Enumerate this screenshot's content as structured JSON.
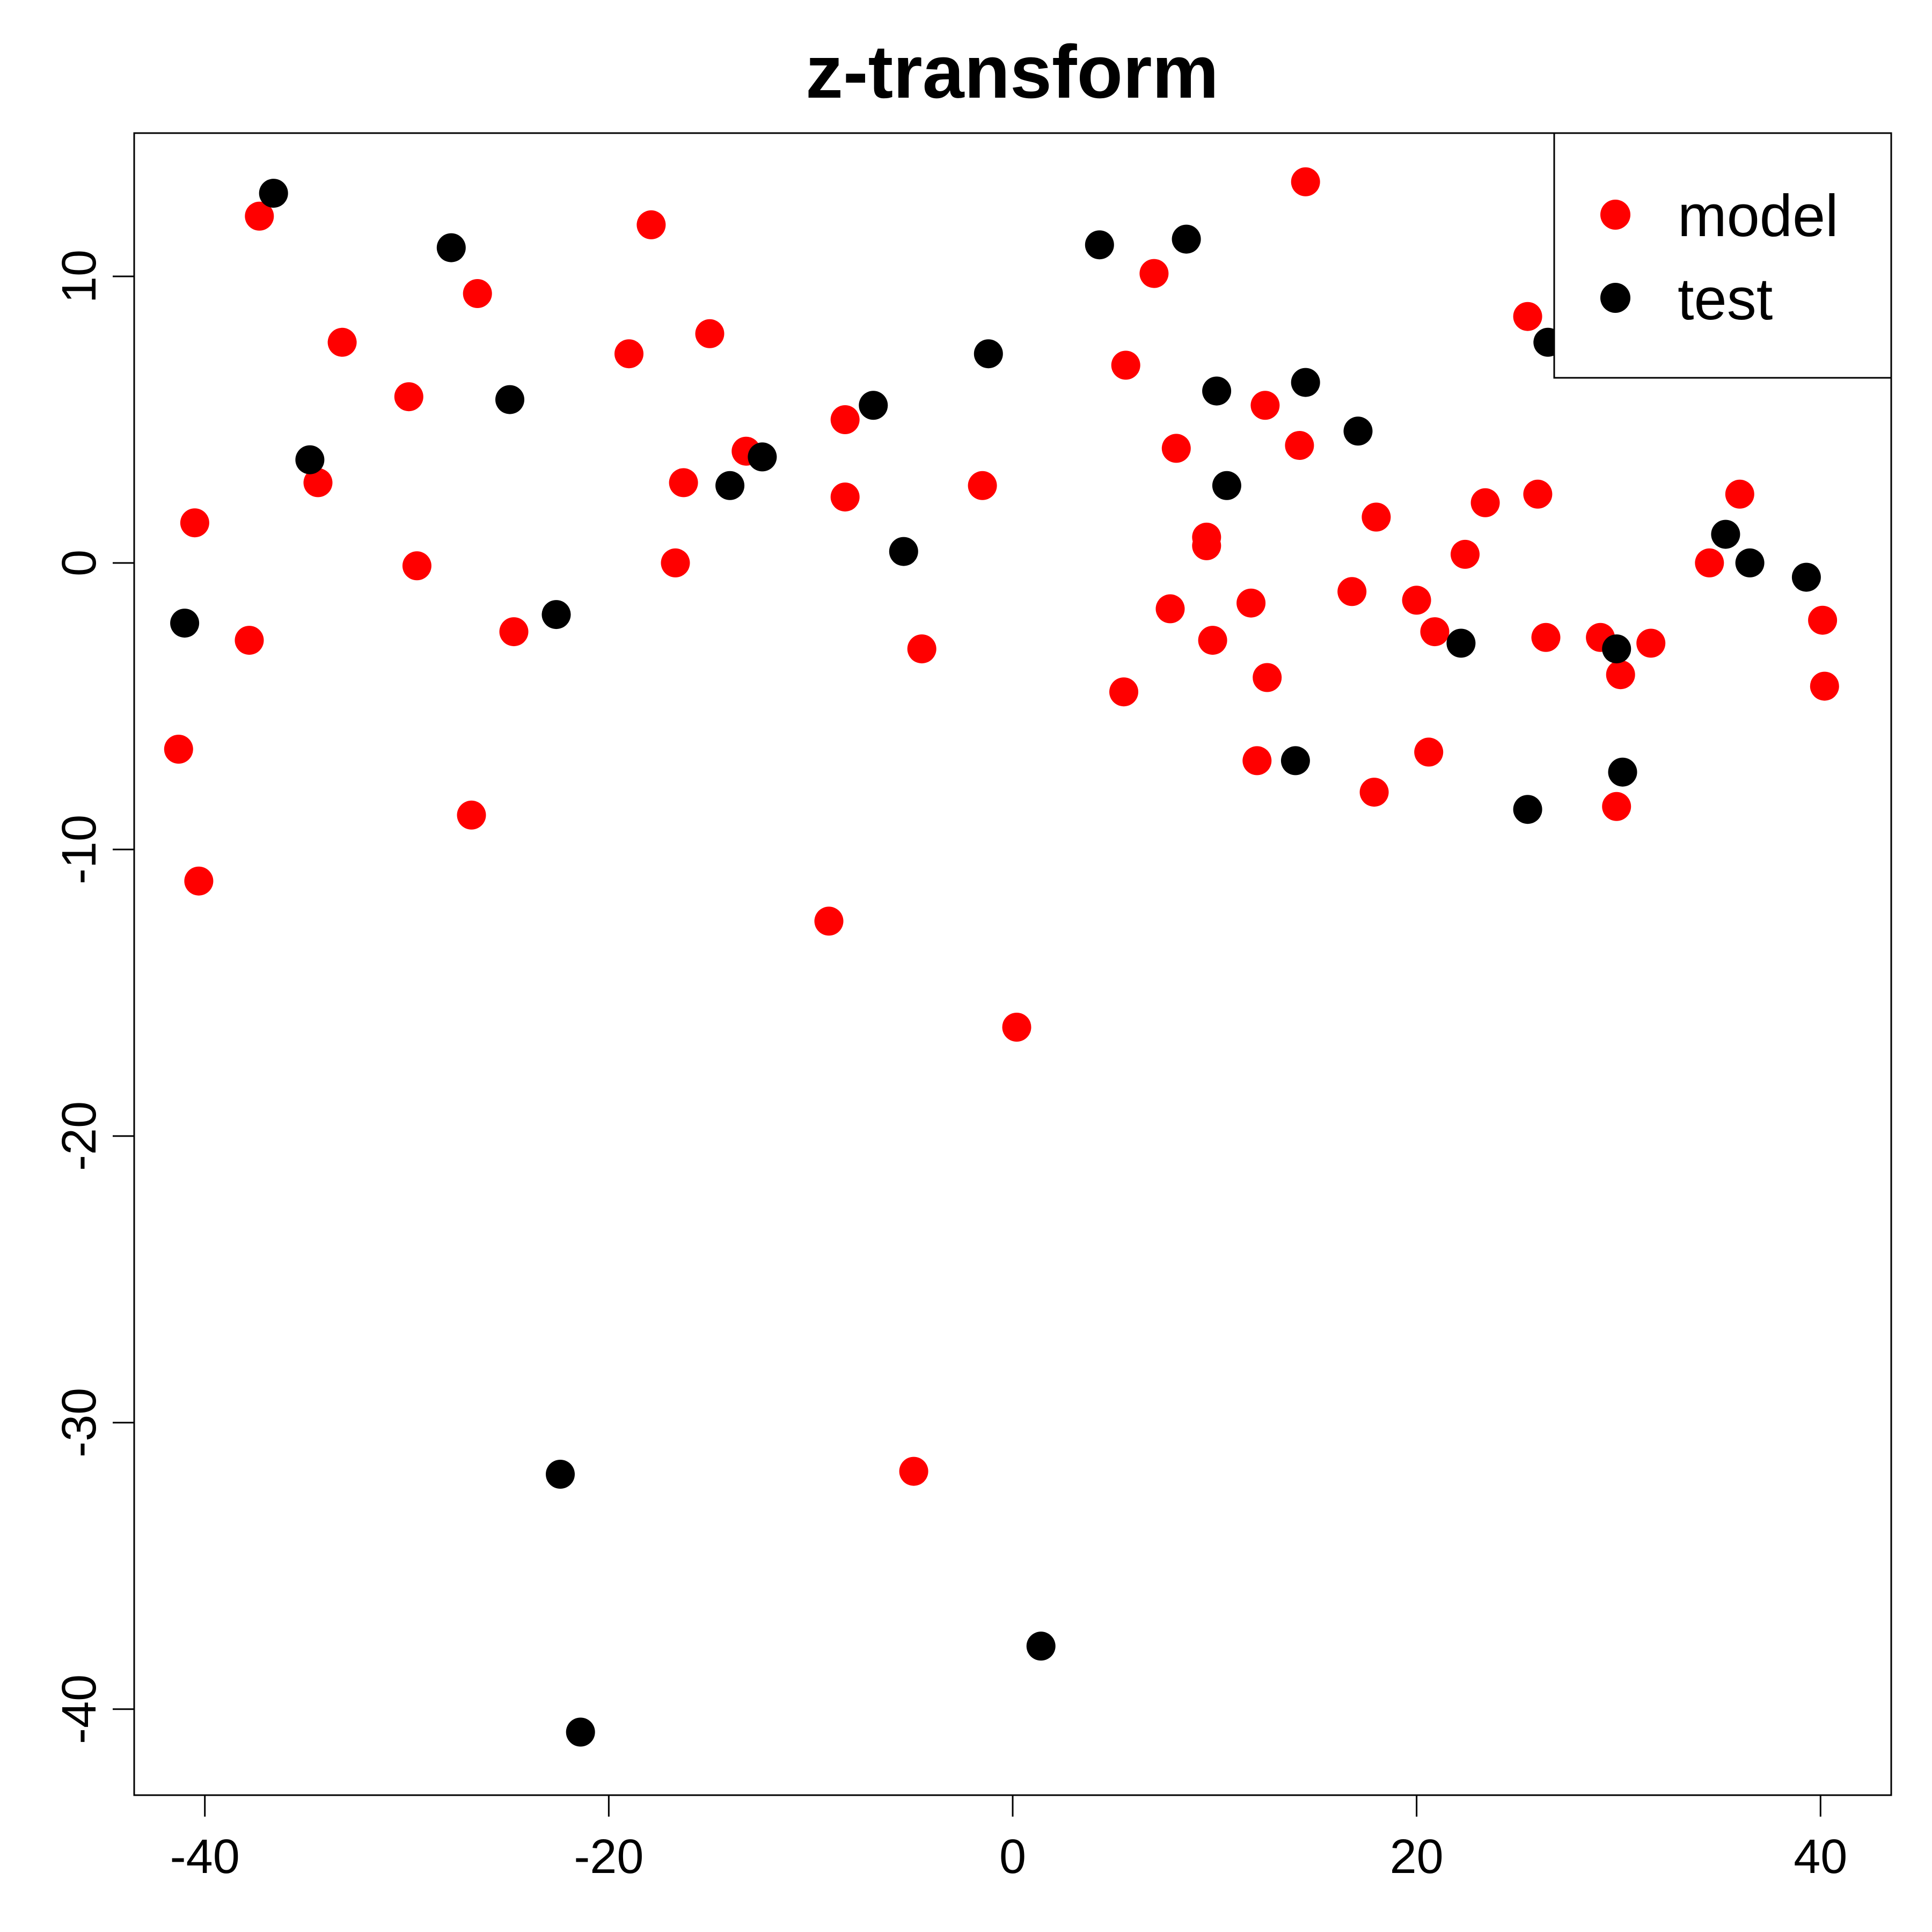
{
  "chart_data": {
    "type": "scatter",
    "title": "z-transform",
    "xlabel": "",
    "ylabel": "",
    "xlim": [
      -43.5,
      43.5
    ],
    "ylim": [
      -43,
      15
    ],
    "x_ticks": [
      -40,
      -20,
      0,
      20,
      40
    ],
    "y_ticks": [
      -40,
      -30,
      -20,
      -10,
      0,
      10
    ],
    "x_tick_labels": [
      "-40",
      "-20",
      "0",
      "20",
      "40"
    ],
    "y_tick_labels": [
      "-40",
      "-30",
      "-20",
      "-10",
      "0",
      "10"
    ],
    "grid": false,
    "legend_position": "top-right",
    "series": [
      {
        "name": "model",
        "color": "#ff0000",
        "points": [
          [
            -41.3,
            -6.5
          ],
          [
            -40.3,
            -11.1
          ],
          [
            -40.5,
            1.4
          ],
          [
            -37.8,
            -2.7
          ],
          [
            -37.3,
            12.1
          ],
          [
            -33.2,
            7.7
          ],
          [
            -34.4,
            2.8
          ],
          [
            -29.9,
            5.8
          ],
          [
            -29.5,
            -0.1
          ],
          [
            -26.5,
            9.4
          ],
          [
            -26.8,
            -8.8
          ],
          [
            -24.7,
            -2.4
          ],
          [
            -19.0,
            7.3
          ],
          [
            -17.9,
            11.8
          ],
          [
            -16.3,
            2.8
          ],
          [
            -16.7,
            0.0
          ],
          [
            -15.0,
            8.0
          ],
          [
            -13.2,
            3.9
          ],
          [
            -9.1,
            -12.5
          ],
          [
            -8.3,
            5.0
          ],
          [
            -8.3,
            2.3
          ],
          [
            -4.5,
            -3.0
          ],
          [
            -4.9,
            -31.7
          ],
          [
            -1.5,
            2.7
          ],
          [
            0.2,
            -16.2
          ],
          [
            5.6,
            6.9
          ],
          [
            5.5,
            -4.5
          ],
          [
            7.0,
            10.1
          ],
          [
            7.8,
            -1.6
          ],
          [
            8.1,
            4.0
          ],
          [
            9.6,
            0.9
          ],
          [
            9.6,
            0.6
          ],
          [
            9.9,
            -2.7
          ],
          [
            11.8,
            -1.4
          ],
          [
            12.1,
            -6.9
          ],
          [
            12.5,
            5.5
          ],
          [
            12.6,
            -4.0
          ],
          [
            14.2,
            4.1
          ],
          [
            14.5,
            13.3
          ],
          [
            16.8,
            -1.0
          ],
          [
            18.0,
            1.6
          ],
          [
            17.9,
            -8.0
          ],
          [
            20.0,
            -1.3
          ],
          [
            20.6,
            -6.6
          ],
          [
            20.9,
            -2.4
          ],
          [
            22.4,
            0.3
          ],
          [
            23.4,
            2.1
          ],
          [
            25.5,
            8.6
          ],
          [
            26.0,
            2.4
          ],
          [
            26.4,
            -2.6
          ],
          [
            29.1,
            -2.6
          ],
          [
            30.1,
            -3.9
          ],
          [
            29.9,
            -8.5
          ],
          [
            31.6,
            -2.8
          ],
          [
            34.5,
            0.0
          ],
          [
            36.0,
            2.4
          ],
          [
            40.1,
            -2.0
          ],
          [
            40.2,
            -4.3
          ]
        ]
      },
      {
        "name": "test",
        "color": "#000000",
        "points": [
          [
            -41.0,
            -2.1
          ],
          [
            -36.6,
            12.9
          ],
          [
            -34.8,
            3.6
          ],
          [
            -27.8,
            11.0
          ],
          [
            -24.9,
            5.7
          ],
          [
            -22.6,
            -1.8
          ],
          [
            -22.4,
            -31.8
          ],
          [
            -21.4,
            -40.8
          ],
          [
            -14.0,
            2.7
          ],
          [
            -12.4,
            3.7
          ],
          [
            -6.9,
            5.5
          ],
          [
            -5.4,
            0.4
          ],
          [
            -1.2,
            7.3
          ],
          [
            1.4,
            -37.8
          ],
          [
            4.3,
            11.1
          ],
          [
            8.6,
            11.3
          ],
          [
            10.1,
            6.0
          ],
          [
            10.6,
            2.7
          ],
          [
            14.0,
            -6.9
          ],
          [
            14.5,
            6.3
          ],
          [
            17.1,
            4.6
          ],
          [
            22.2,
            -2.8
          ],
          [
            25.5,
            -8.6
          ],
          [
            26.5,
            7.7
          ],
          [
            29.9,
            -3.0
          ],
          [
            30.2,
            -7.3
          ],
          [
            35.3,
            1.0
          ],
          [
            36.5,
            0.0
          ],
          [
            39.3,
            -0.5
          ]
        ]
      }
    ]
  }
}
